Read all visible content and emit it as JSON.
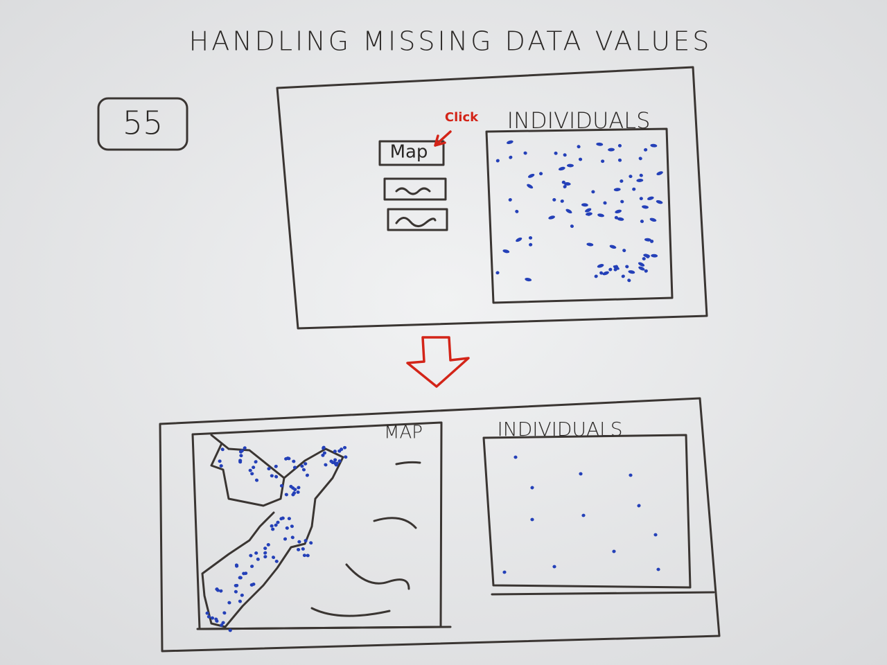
{
  "header": {
    "title": "HANDLING MISSING DATA VALUES",
    "page_number": "55"
  },
  "screen_before": {
    "annotation": "Click",
    "button": "Map",
    "panel_title": "INDIVIDUALS"
  },
  "screen_after": {
    "map_title": "MAP",
    "panel_title": "INDIVIDUALS"
  }
}
